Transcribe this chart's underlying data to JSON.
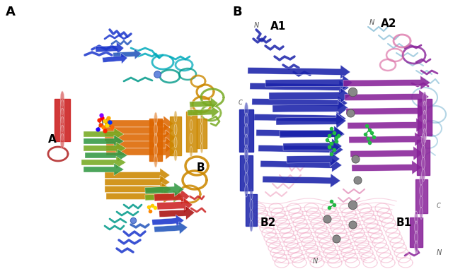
{
  "figure_width": 6.4,
  "figure_height": 3.81,
  "dpi": 100,
  "background_color": "#ffffff",
  "panel_A_label": "A",
  "panel_B_label": "B",
  "panel_A_sublabel_A": "A",
  "panel_A_sublabel_B": "B",
  "panel_B_sublabel_A1": "A1",
  "panel_B_sublabel_A2": "A2",
  "panel_B_sublabel_B1": "B1",
  "panel_B_sublabel_B2": "B2",
  "label_fontsize": 13,
  "sublabel_fontsize": 11,
  "label_color": "#000000",
  "label_fontweight": "bold"
}
